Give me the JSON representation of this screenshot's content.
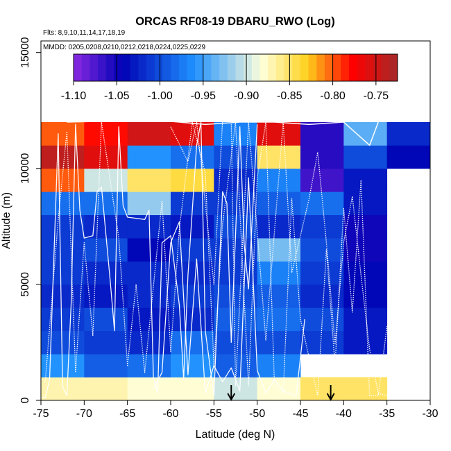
{
  "chart_data": {
    "type": "heatmap",
    "title": "ORCAS RF08-19 DBARU_RWO (Log)",
    "flights_label": "Flts: 8,9,10,11,14,17,18,19",
    "mmdd_label": "MMDD: 0205,0208,0210,0212,0218,0224,0225,0229",
    "xlabel": "Latitude (deg N)",
    "ylabel": "Altitude (m)",
    "xlim": [
      -75,
      -30
    ],
    "ylim": [
      0,
      15500
    ],
    "x_ticks": [
      -75,
      -70,
      -65,
      -60,
      -55,
      -50,
      -45,
      -40,
      -35,
      -30
    ],
    "y_ticks": [
      0,
      5000,
      10000,
      15000
    ],
    "colorbar": {
      "min": -1.1,
      "max": -0.725,
      "ticks": [
        -1.1,
        -1.05,
        -1.0,
        -0.95,
        -0.9,
        -0.85,
        -0.8,
        -0.75
      ],
      "tick_labels": [
        "-1.10",
        "-1.05",
        "-1.00",
        "-0.95",
        "-0.90",
        "-0.85",
        "-0.80",
        "-0.75"
      ],
      "colors": [
        "#8a2be2",
        "#0000b4",
        "#1e90ff",
        "#ffffdc",
        "#ffd21e",
        "#ff0000",
        "#a52a2a"
      ],
      "stops": [
        0,
        0.15,
        0.37,
        0.58,
        0.72,
        0.86,
        1
      ]
    },
    "grid": {
      "lat_edges": [
        -75,
        -70,
        -65,
        -60,
        -55,
        -50,
        -45,
        -40,
        -35,
        -30
      ],
      "alt_edges": [
        0,
        1000,
        2000,
        3000,
        4000,
        5000,
        6000,
        7000,
        8000,
        9000,
        10000,
        11000,
        12000
      ],
      "values": [
        [
          -0.87,
          -0.87,
          -0.88,
          -0.88,
          -0.9,
          -0.88,
          -0.85,
          -0.85,
          null
        ],
        [
          -0.96,
          -0.99,
          -0.98,
          -0.96,
          -0.99,
          -0.97,
          null,
          null,
          null
        ],
        [
          -1.0,
          -1.01,
          -1.02,
          -0.98,
          -1.0,
          -1.0,
          -1.01,
          -1.03,
          null
        ],
        [
          -1.01,
          -1.0,
          -1.03,
          -1.02,
          -0.99,
          -0.98,
          -1.0,
          -1.03,
          null
        ],
        [
          -1.02,
          -1.03,
          -1.02,
          -1.01,
          -1.0,
          -0.99,
          -1.02,
          -1.04,
          null
        ],
        [
          -1.01,
          -1.02,
          -1.02,
          -1.02,
          -1.01,
          -0.97,
          -1.01,
          -1.04,
          null
        ],
        [
          -1.01,
          -1.0,
          -1.04,
          -1.01,
          -1.01,
          -0.93,
          -1.0,
          -1.05,
          null
        ],
        [
          -1.01,
          -1.02,
          -1.02,
          -1.03,
          -1.0,
          -1.02,
          -1.01,
          -1.05,
          null
        ],
        [
          -0.98,
          -0.98,
          -0.92,
          -1.01,
          -1.01,
          -0.99,
          -0.98,
          -1.03,
          null
        ],
        [
          -0.8,
          -0.9,
          -0.85,
          -0.84,
          -1.02,
          -0.97,
          -1.07,
          -1.03,
          null
        ],
        [
          -0.74,
          -0.76,
          -0.96,
          -0.98,
          -1.0,
          -0.85,
          -1.06,
          -1.0,
          -1.04
        ],
        [
          -0.8,
          -0.78,
          -0.75,
          -0.76,
          -0.97,
          -0.76,
          -1.06,
          -0.94,
          -1.02
        ]
      ]
    },
    "markers": [
      {
        "lat": -53,
        "label": "down-arrow"
      },
      {
        "lat": -41.5,
        "label": "down-arrow"
      }
    ],
    "flight_tracks": [
      [
        [
          -75,
          120
        ],
        [
          -74.5,
          120
        ],
        [
          -74,
          900
        ],
        [
          -73,
          11500
        ],
        [
          -72.5,
          600
        ],
        [
          -72,
          200
        ],
        [
          -71.5,
          4200
        ],
        [
          -71,
          11900
        ],
        [
          -70.5,
          8200
        ],
        [
          -70,
          7000
        ],
        [
          -69,
          7100
        ],
        [
          -68.5,
          9000
        ],
        [
          -68,
          9200
        ],
        [
          -67,
          5200
        ],
        [
          -66.5,
          3000
        ],
        [
          -66,
          11800
        ],
        [
          -65.5,
          8400
        ],
        [
          -65,
          7900
        ],
        [
          -63,
          7800
        ],
        [
          -62.5,
          8200
        ],
        [
          -62,
          1000
        ],
        [
          -61.5,
          300
        ],
        [
          -61,
          6800
        ],
        [
          -60,
          7100
        ],
        [
          -59,
          4100
        ],
        [
          -58.5,
          900
        ],
        [
          -58,
          5400
        ],
        [
          -57,
          11000
        ],
        [
          -56.5,
          12000
        ],
        [
          -56,
          3000
        ],
        [
          -55,
          200
        ],
        [
          -54,
          9000
        ],
        [
          -53.5,
          8500
        ],
        [
          -53,
          2500
        ],
        [
          -52,
          11800
        ],
        [
          -51.5,
          6700
        ],
        [
          -51,
          4800
        ],
        [
          -50,
          11900
        ]
      ],
      [
        [
          -74.5,
          800
        ],
        [
          -73,
          7800
        ],
        [
          -72,
          11600
        ],
        [
          -71,
          1200
        ],
        [
          -70,
          6800
        ],
        [
          -69,
          2800
        ],
        [
          -68,
          12000
        ],
        [
          -66,
          7000
        ],
        [
          -65,
          1500
        ],
        [
          -64,
          5000
        ],
        [
          -63,
          1200
        ],
        [
          -61,
          8600
        ],
        [
          -60,
          2100
        ],
        [
          -59,
          7400
        ],
        [
          -57.5,
          12000
        ],
        [
          -56,
          9800
        ],
        [
          -55,
          1500
        ],
        [
          -54,
          7600
        ],
        [
          -52.5,
          12000
        ],
        [
          -51,
          600
        ],
        [
          -50,
          9600
        ],
        [
          -49,
          12000
        ],
        [
          -48,
          600
        ],
        [
          -47,
          300
        ],
        [
          -46,
          8700
        ],
        [
          -45,
          3500
        ],
        [
          -43,
          200
        ],
        [
          -42,
          6500
        ],
        [
          -41,
          1500
        ],
        [
          -40,
          8300
        ],
        [
          -39,
          3800
        ],
        [
          -38,
          9500
        ],
        [
          -37,
          200
        ],
        [
          -36,
          200
        ],
        [
          -35,
          3200
        ]
      ],
      [
        [
          -72,
          12000
        ],
        [
          -62,
          12100
        ],
        [
          -56,
          11900
        ],
        [
          -52,
          12000
        ],
        [
          -48,
          12000
        ],
        [
          -44,
          11900
        ],
        [
          -40,
          12000
        ],
        [
          -37,
          11000
        ],
        [
          -36,
          12000
        ]
      ],
      [
        [
          -60,
          11800
        ],
        [
          -58,
          10300
        ],
        [
          -57,
          12000
        ],
        [
          -55,
          5000
        ],
        [
          -54,
          12100
        ],
        [
          -53,
          12000
        ],
        [
          -52.5,
          600
        ],
        [
          -51,
          12000
        ],
        [
          -49,
          2600
        ],
        [
          -47,
          12000
        ],
        [
          -46,
          5500
        ],
        [
          -44,
          8700
        ],
        [
          -43,
          10700
        ],
        [
          -42,
          6800
        ],
        [
          -41,
          2400
        ],
        [
          -40,
          6800
        ],
        [
          -39,
          8800
        ],
        [
          -38,
          5400
        ],
        [
          -37,
          2200
        ],
        [
          -36,
          300
        ],
        [
          -35,
          200
        ]
      ],
      [
        [
          -62,
          500
        ],
        [
          -61,
          1200
        ],
        [
          -60,
          6800
        ],
        [
          -59,
          7700
        ],
        [
          -58,
          1100
        ],
        [
          -57,
          6100
        ],
        [
          -56,
          300
        ],
        [
          -55,
          1500
        ],
        [
          -54,
          800
        ],
        [
          -53,
          1400
        ],
        [
          -52,
          400
        ],
        [
          -51,
          9600
        ],
        [
          -50,
          1300
        ],
        [
          -49,
          300
        ],
        [
          -48,
          900
        ],
        [
          -47,
          400
        ],
        [
          -45.5,
          200
        ],
        [
          -44.5,
          3500
        ]
      ]
    ]
  }
}
